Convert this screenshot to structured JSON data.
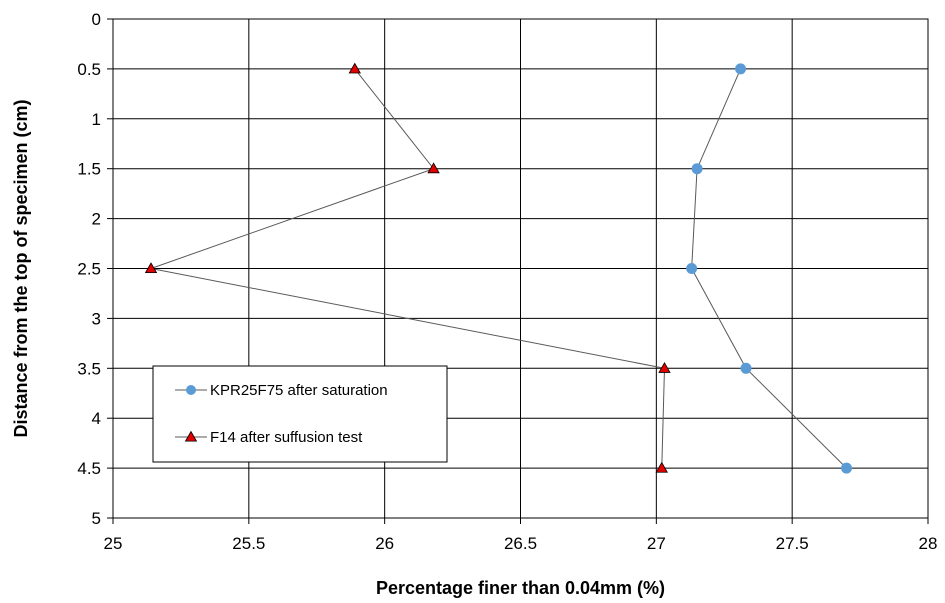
{
  "chart_data": {
    "type": "scatter",
    "xlabel": "Percentage finer than 0.04mm (%)",
    "ylabel": "Distance from the top of specimen (cm)",
    "xlim": [
      25,
      28
    ],
    "ylim": [
      0,
      5
    ],
    "y_inverted": true,
    "x_ticks": [
      "25",
      "25.5",
      "26",
      "26.5",
      "27",
      "27.5",
      "28"
    ],
    "y_ticks": [
      "0",
      "0.5",
      "1",
      "1.5",
      "2",
      "2.5",
      "3",
      "3.5",
      "4",
      "4.5",
      "5"
    ],
    "grid": true,
    "legend_position": "lower-left",
    "series": [
      {
        "name": "KPR25F75 after saturation",
        "marker": "circle",
        "color": "#5B9BD5",
        "points": [
          {
            "x": 27.31,
            "y": 0.5
          },
          {
            "x": 27.15,
            "y": 1.5
          },
          {
            "x": 27.13,
            "y": 2.5
          },
          {
            "x": 27.33,
            "y": 3.5
          },
          {
            "x": 27.7,
            "y": 4.5
          }
        ]
      },
      {
        "name": "F14 after suffusion test",
        "marker": "triangle",
        "color": "#E00000",
        "points": [
          {
            "x": 25.89,
            "y": 0.5
          },
          {
            "x": 26.18,
            "y": 1.5
          },
          {
            "x": 25.14,
            "y": 2.5
          },
          {
            "x": 27.03,
            "y": 3.5
          },
          {
            "x": 27.02,
            "y": 4.5
          }
        ]
      }
    ]
  }
}
